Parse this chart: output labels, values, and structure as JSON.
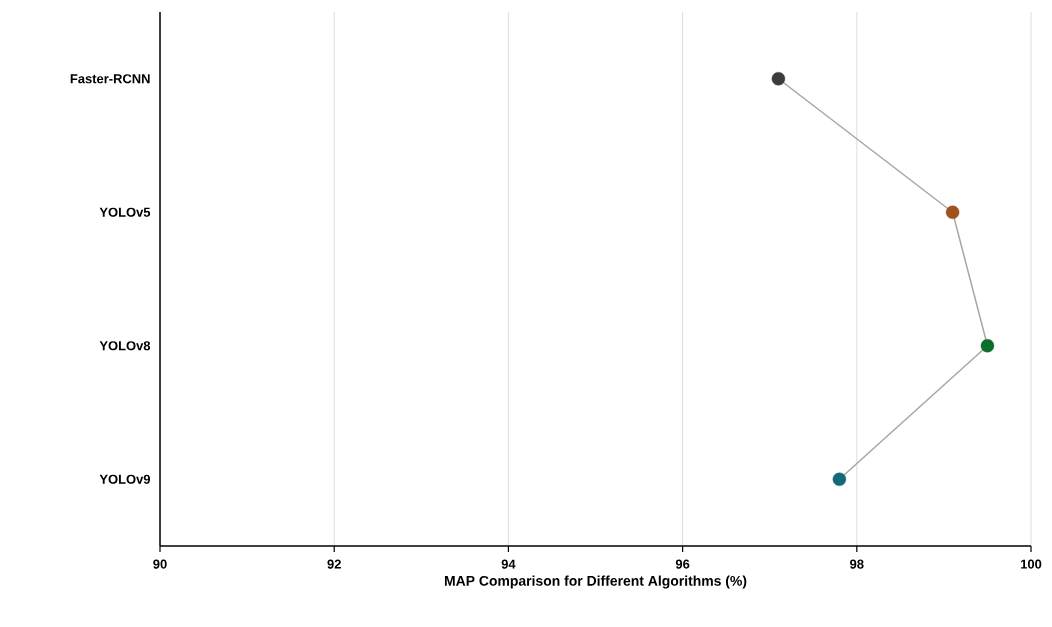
{
  "chart_data": {
    "type": "line",
    "orientation": "horizontal",
    "xlabel": "MAP Comparison for Different Algorithms (%)",
    "categories": [
      "Faster-RCNN",
      "YOLOv5",
      "YOLOv8",
      "YOLOv9"
    ],
    "series": [
      {
        "color": "#a6a6a6",
        "colors": [
          "#3c3c40",
          "#a0521e",
          "#0b6e2a",
          "#13697a"
        ],
        "values": [
          97.1,
          99.1,
          99.5,
          97.8
        ]
      }
    ],
    "xlim": [
      90,
      100
    ],
    "xticks": [
      90,
      92,
      94,
      96,
      98,
      100
    ],
    "grid": "x",
    "marker": "circle",
    "line_style": "solid"
  }
}
